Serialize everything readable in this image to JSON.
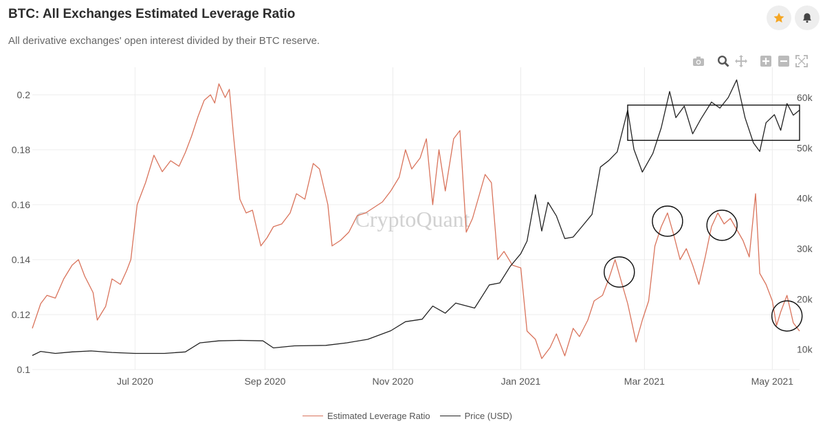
{
  "header": {
    "title": "BTC: All Exchanges Estimated Leverage Ratio",
    "subtitle": "All derivative exchanges' open interest divided by their BTC reserve."
  },
  "actions": {
    "star_icon": "star-icon",
    "bell_icon": "bell-icon",
    "star_color": "#f5a623"
  },
  "modebar": [
    "camera-icon",
    "zoom-icon",
    "pan-icon",
    "zoom-in-icon",
    "zoom-out-icon",
    "autoscale-icon"
  ],
  "watermark": "CryptoQuant",
  "colors": {
    "leverage": "#d9735b",
    "price": "#222222",
    "grid": "#ececec"
  },
  "chart_data": {
    "type": "line",
    "x_range": [
      "2020-05-13",
      "2021-05-14"
    ],
    "x_ticks": [
      {
        "date": "2020-07-01",
        "label": "Jul 2020"
      },
      {
        "date": "2020-09-01",
        "label": "Sep 2020"
      },
      {
        "date": "2020-11-01",
        "label": "Nov 2020"
      },
      {
        "date": "2021-01-01",
        "label": "Jan 2021"
      },
      {
        "date": "2021-03-01",
        "label": "Mar 2021"
      },
      {
        "date": "2021-05-01",
        "label": "May 2021"
      }
    ],
    "y_left": {
      "ylim": [
        0.1,
        0.21
      ],
      "ticks": [
        0.1,
        0.12,
        0.14,
        0.16,
        0.18,
        0.2
      ]
    },
    "y_right": {
      "ylim": [
        6000,
        66000
      ],
      "ticks": [
        10000,
        20000,
        30000,
        40000,
        50000,
        60000
      ],
      "tick_labels": [
        "10k",
        "20k",
        "30k",
        "40k",
        "50k",
        "60k"
      ]
    },
    "grid": true,
    "legend_position": "bottom-center",
    "series": [
      {
        "name": "Estimated Leverage Ratio",
        "axis": "left",
        "points": [
          [
            "2020-05-13",
            0.115
          ],
          [
            "2020-05-17",
            0.124
          ],
          [
            "2020-05-20",
            0.127
          ],
          [
            "2020-05-24",
            0.126
          ],
          [
            "2020-05-28",
            0.133
          ],
          [
            "2020-06-01",
            0.138
          ],
          [
            "2020-06-04",
            0.14
          ],
          [
            "2020-06-07",
            0.134
          ],
          [
            "2020-06-11",
            0.128
          ],
          [
            "2020-06-13",
            0.118
          ],
          [
            "2020-06-17",
            0.123
          ],
          [
            "2020-06-20",
            0.133
          ],
          [
            "2020-06-24",
            0.131
          ],
          [
            "2020-06-27",
            0.136
          ],
          [
            "2020-06-29",
            0.14
          ],
          [
            "2020-07-02",
            0.16
          ],
          [
            "2020-07-06",
            0.168
          ],
          [
            "2020-07-10",
            0.178
          ],
          [
            "2020-07-14",
            0.172
          ],
          [
            "2020-07-18",
            0.176
          ],
          [
            "2020-07-22",
            0.174
          ],
          [
            "2020-07-25",
            0.179
          ],
          [
            "2020-07-28",
            0.185
          ],
          [
            "2020-07-31",
            0.192
          ],
          [
            "2020-08-03",
            0.198
          ],
          [
            "2020-08-06",
            0.2
          ],
          [
            "2020-08-08",
            0.197
          ],
          [
            "2020-08-10",
            0.204
          ],
          [
            "2020-08-13",
            0.199
          ],
          [
            "2020-08-15",
            0.202
          ],
          [
            "2020-08-17",
            0.185
          ],
          [
            "2020-08-20",
            0.162
          ],
          [
            "2020-08-23",
            0.157
          ],
          [
            "2020-08-26",
            0.158
          ],
          [
            "2020-08-30",
            0.145
          ],
          [
            "2020-09-02",
            0.148
          ],
          [
            "2020-09-05",
            0.152
          ],
          [
            "2020-09-09",
            0.153
          ],
          [
            "2020-09-13",
            0.157
          ],
          [
            "2020-09-16",
            0.164
          ],
          [
            "2020-09-20",
            0.162
          ],
          [
            "2020-09-24",
            0.175
          ],
          [
            "2020-09-27",
            0.173
          ],
          [
            "2020-10-01",
            0.16
          ],
          [
            "2020-10-03",
            0.145
          ],
          [
            "2020-10-07",
            0.147
          ],
          [
            "2020-10-11",
            0.15
          ],
          [
            "2020-10-15",
            0.156
          ],
          [
            "2020-10-19",
            0.157
          ],
          [
            "2020-10-23",
            0.159
          ],
          [
            "2020-10-27",
            0.161
          ],
          [
            "2020-10-31",
            0.165
          ],
          [
            "2020-11-04",
            0.17
          ],
          [
            "2020-11-07",
            0.18
          ],
          [
            "2020-11-10",
            0.173
          ],
          [
            "2020-11-14",
            0.177
          ],
          [
            "2020-11-17",
            0.184
          ],
          [
            "2020-11-20",
            0.16
          ],
          [
            "2020-11-23",
            0.18
          ],
          [
            "2020-11-26",
            0.165
          ],
          [
            "2020-11-30",
            0.184
          ],
          [
            "2020-12-03",
            0.187
          ],
          [
            "2020-12-06",
            0.15
          ],
          [
            "2020-12-09",
            0.155
          ],
          [
            "2020-12-12",
            0.163
          ],
          [
            "2020-12-15",
            0.171
          ],
          [
            "2020-12-18",
            0.168
          ],
          [
            "2020-12-21",
            0.14
          ],
          [
            "2020-12-24",
            0.143
          ],
          [
            "2020-12-28",
            0.138
          ],
          [
            "2021-01-01",
            0.137
          ],
          [
            "2021-01-04",
            0.114
          ],
          [
            "2021-01-08",
            0.111
          ],
          [
            "2021-01-11",
            0.104
          ],
          [
            "2021-01-15",
            0.108
          ],
          [
            "2021-01-18",
            0.113
          ],
          [
            "2021-01-22",
            0.105
          ],
          [
            "2021-01-26",
            0.115
          ],
          [
            "2021-01-29",
            0.112
          ],
          [
            "2021-02-02",
            0.118
          ],
          [
            "2021-02-05",
            0.125
          ],
          [
            "2021-02-09",
            0.127
          ],
          [
            "2021-02-12",
            0.133
          ],
          [
            "2021-02-15",
            0.14
          ],
          [
            "2021-02-18",
            0.132
          ],
          [
            "2021-02-21",
            0.124
          ],
          [
            "2021-02-25",
            0.11
          ],
          [
            "2021-02-28",
            0.118
          ],
          [
            "2021-03-03",
            0.125
          ],
          [
            "2021-03-06",
            0.145
          ],
          [
            "2021-03-09",
            0.152
          ],
          [
            "2021-03-12",
            0.157
          ],
          [
            "2021-03-15",
            0.149
          ],
          [
            "2021-03-18",
            0.14
          ],
          [
            "2021-03-21",
            0.144
          ],
          [
            "2021-03-24",
            0.138
          ],
          [
            "2021-03-27",
            0.131
          ],
          [
            "2021-03-30",
            0.141
          ],
          [
            "2021-04-02",
            0.152
          ],
          [
            "2021-04-05",
            0.157
          ],
          [
            "2021-04-08",
            0.153
          ],
          [
            "2021-04-11",
            0.155
          ],
          [
            "2021-04-14",
            0.151
          ],
          [
            "2021-04-17",
            0.147
          ],
          [
            "2021-04-20",
            0.141
          ],
          [
            "2021-04-23",
            0.164
          ],
          [
            "2021-04-25",
            0.135
          ],
          [
            "2021-04-28",
            0.131
          ],
          [
            "2021-05-01",
            0.125
          ],
          [
            "2021-05-03",
            0.116
          ],
          [
            "2021-05-05",
            0.121
          ],
          [
            "2021-05-08",
            0.127
          ],
          [
            "2021-05-11",
            0.117
          ],
          [
            "2021-05-14",
            0.114
          ]
        ]
      },
      {
        "name": "Price (USD)",
        "axis": "right",
        "points": [
          [
            "2020-05-13",
            8800
          ],
          [
            "2020-05-17",
            9600
          ],
          [
            "2020-05-24",
            9200
          ],
          [
            "2020-06-01",
            9500
          ],
          [
            "2020-06-10",
            9700
          ],
          [
            "2020-06-20",
            9400
          ],
          [
            "2020-07-01",
            9200
          ],
          [
            "2020-07-15",
            9200
          ],
          [
            "2020-07-25",
            9500
          ],
          [
            "2020-08-01",
            11300
          ],
          [
            "2020-08-10",
            11700
          ],
          [
            "2020-08-20",
            11800
          ],
          [
            "2020-08-31",
            11700
          ],
          [
            "2020-09-05",
            10300
          ],
          [
            "2020-09-15",
            10700
          ],
          [
            "2020-09-30",
            10800
          ],
          [
            "2020-10-10",
            11300
          ],
          [
            "2020-10-20",
            12000
          ],
          [
            "2020-10-31",
            13700
          ],
          [
            "2020-11-07",
            15500
          ],
          [
            "2020-11-15",
            16000
          ],
          [
            "2020-11-20",
            18600
          ],
          [
            "2020-11-26",
            17200
          ],
          [
            "2020-12-01",
            19200
          ],
          [
            "2020-12-10",
            18200
          ],
          [
            "2020-12-17",
            22800
          ],
          [
            "2020-12-22",
            23200
          ],
          [
            "2020-12-27",
            26500
          ],
          [
            "2021-01-01",
            29000
          ],
          [
            "2021-01-04",
            31500
          ],
          [
            "2021-01-08",
            40700
          ],
          [
            "2021-01-11",
            33500
          ],
          [
            "2021-01-14",
            39200
          ],
          [
            "2021-01-18",
            36500
          ],
          [
            "2021-01-22",
            32000
          ],
          [
            "2021-01-26",
            32300
          ],
          [
            "2021-01-30",
            34300
          ],
          [
            "2021-02-04",
            36800
          ],
          [
            "2021-02-08",
            46200
          ],
          [
            "2021-02-12",
            47500
          ],
          [
            "2021-02-16",
            49200
          ],
          [
            "2021-02-21",
            57500
          ],
          [
            "2021-02-24",
            49700
          ],
          [
            "2021-02-28",
            45200
          ],
          [
            "2021-03-05",
            48900
          ],
          [
            "2021-03-09",
            54000
          ],
          [
            "2021-03-13",
            61200
          ],
          [
            "2021-03-16",
            56000
          ],
          [
            "2021-03-20",
            58300
          ],
          [
            "2021-03-24",
            52800
          ],
          [
            "2021-03-28",
            55800
          ],
          [
            "2021-04-02",
            59100
          ],
          [
            "2021-04-06",
            57900
          ],
          [
            "2021-04-10",
            60000
          ],
          [
            "2021-04-14",
            63500
          ],
          [
            "2021-04-18",
            56000
          ],
          [
            "2021-04-22",
            51000
          ],
          [
            "2021-04-25",
            49300
          ],
          [
            "2021-04-28",
            55000
          ],
          [
            "2021-05-02",
            56600
          ],
          [
            "2021-05-05",
            53500
          ],
          [
            "2021-05-08",
            58800
          ],
          [
            "2021-05-11",
            56500
          ],
          [
            "2021-05-14",
            57500
          ]
        ]
      }
    ],
    "annotations": [
      {
        "shape": "rect",
        "axis": "right",
        "x0": "2021-02-21",
        "x1": "2021-05-14",
        "y0": 51500,
        "y1": 58500
      },
      {
        "shape": "circle",
        "axis": "left",
        "x": "2021-02-17",
        "y": 0.1355
      },
      {
        "shape": "circle",
        "axis": "left",
        "x": "2021-03-12",
        "y": 0.154
      },
      {
        "shape": "circle",
        "axis": "left",
        "x": "2021-04-07",
        "y": 0.1525
      },
      {
        "shape": "circle",
        "axis": "left",
        "x": "2021-05-08",
        "y": 0.1195
      }
    ]
  }
}
